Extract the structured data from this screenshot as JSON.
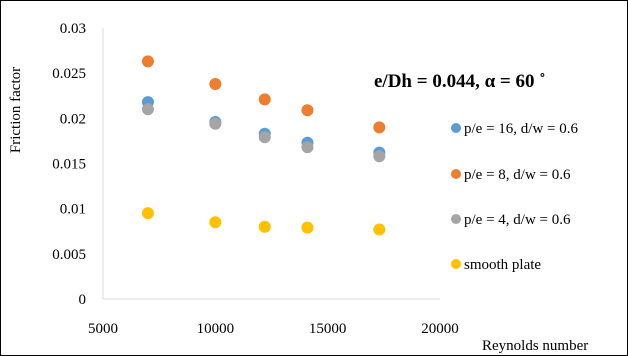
{
  "chart_data": {
    "type": "scatter",
    "title": "",
    "xlabel": "Reynolds number",
    "ylabel": "Friction factor",
    "xlim": [
      5000,
      20000
    ],
    "ylim": [
      0,
      0.03
    ],
    "x_ticks": [
      "5000",
      "10000",
      "15000",
      "20000"
    ],
    "x_tick_values": [
      5000,
      10000,
      15000,
      20000
    ],
    "y_ticks": [
      "0",
      "0.005",
      "0.01",
      "0.015",
      "0.02",
      "0.025",
      "0.03"
    ],
    "y_tick_values": [
      0,
      0.005,
      0.01,
      0.015,
      0.02,
      0.025,
      0.03
    ],
    "grid": false,
    "legend_position": "right",
    "annotation": "e/Dh = 0.044, α = 60 ˚",
    "series": [
      {
        "name": "p/e = 16, d/w = 0.6",
        "color": "#5B9BD5",
        "points": [
          [
            7000,
            0.0218
          ],
          [
            10000,
            0.0196
          ],
          [
            12200,
            0.0183
          ],
          [
            14100,
            0.0173
          ],
          [
            17300,
            0.0162
          ]
        ]
      },
      {
        "name": "p/e = 8, d/w = 0.6",
        "color": "#ED7D31",
        "points": [
          [
            7000,
            0.0263
          ],
          [
            10000,
            0.0238
          ],
          [
            12200,
            0.0221
          ],
          [
            14100,
            0.0209
          ],
          [
            17300,
            0.019
          ]
        ]
      },
      {
        "name": "p/e = 4, d/w = 0.6",
        "color": "#A5A5A5",
        "points": [
          [
            7000,
            0.021
          ],
          [
            10000,
            0.0194
          ],
          [
            12200,
            0.0179
          ],
          [
            14100,
            0.0168
          ],
          [
            17300,
            0.0158
          ]
        ]
      },
      {
        "name": "smooth plate",
        "color": "#FFC000",
        "points": [
          [
            7000,
            0.0095
          ],
          [
            10000,
            0.0085
          ],
          [
            12200,
            0.008
          ],
          [
            14100,
            0.0079
          ],
          [
            17300,
            0.0077
          ]
        ]
      }
    ]
  }
}
